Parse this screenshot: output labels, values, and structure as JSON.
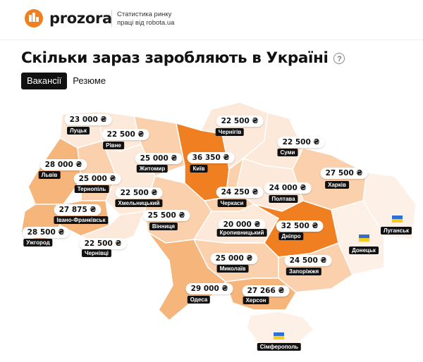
{
  "header": {
    "brand": "prozora",
    "tagline_line1": "Статистика ринку",
    "tagline_line2": "праці від robota.ua"
  },
  "title": "Скільки зараз заробляють в Україні",
  "help_icon": "?",
  "tabs": [
    {
      "label": "Вакансії",
      "active": true
    },
    {
      "label": "Резюме",
      "active": false
    }
  ],
  "colors": {
    "accent": "#f07f22",
    "region_light": "#fde9d9",
    "region_mid": "#fbd1ad",
    "region_dark": "#f6b57b",
    "region_very_light": "#fdf0e6"
  },
  "regions": [
    {
      "id": "lutsk",
      "name": "Луцьк",
      "price": "23 000 ₴"
    },
    {
      "id": "rivne",
      "name": "Рівне",
      "price": "22 500 ₴"
    },
    {
      "id": "chernihiv",
      "name": "Чернігів",
      "price": "22 500 ₴"
    },
    {
      "id": "sumy",
      "name": "Суми",
      "price": "22 500 ₴"
    },
    {
      "id": "lviv",
      "name": "Львів",
      "price": "28 000 ₴"
    },
    {
      "id": "zhytomyr",
      "name": "Житомир",
      "price": "25 000 ₴"
    },
    {
      "id": "kyiv",
      "name": "Київ",
      "price": "36 350 ₴"
    },
    {
      "id": "ternopil",
      "name": "Тернопіль",
      "price": "25 000 ₴"
    },
    {
      "id": "kharkiv",
      "name": "Харків",
      "price": "27 500 ₴"
    },
    {
      "id": "khmelnytskyi",
      "name": "Хмельницький",
      "price": "22 500 ₴"
    },
    {
      "id": "cherkasy",
      "name": "Черкаси",
      "price": "24 250 ₴"
    },
    {
      "id": "poltava",
      "name": "Полтава",
      "price": "24 000 ₴"
    },
    {
      "id": "ivano",
      "name": "Івано-Франківськ",
      "price": "27 875 ₴"
    },
    {
      "id": "vinnytsia",
      "name": "Вінниця",
      "price": "25 500 ₴"
    },
    {
      "id": "kropyvnytskyi",
      "name": "Кропивницький",
      "price": "20 000 ₴"
    },
    {
      "id": "dnipro",
      "name": "Дніпро",
      "price": "32 500 ₴"
    },
    {
      "id": "uzhhorod",
      "name": "Ужгород",
      "price": "28 500 ₴"
    },
    {
      "id": "chernivtsi",
      "name": "Чернівці",
      "price": "22 500 ₴"
    },
    {
      "id": "mykolaiv",
      "name": "Миколаїв",
      "price": "25 000 ₴"
    },
    {
      "id": "zaporizhzhia",
      "name": "Запоріжжя",
      "price": "24 500 ₴"
    },
    {
      "id": "odesa",
      "name": "Одеса",
      "price": "29 000 ₴"
    },
    {
      "id": "kherson",
      "name": "Херсон",
      "price": "27 266 ₴"
    },
    {
      "id": "luhansk",
      "name": "Луганськ",
      "price": ""
    },
    {
      "id": "donetsk",
      "name": "Донецьк",
      "price": ""
    },
    {
      "id": "simferopol",
      "name": "Сімферополь",
      "price": ""
    }
  ]
}
